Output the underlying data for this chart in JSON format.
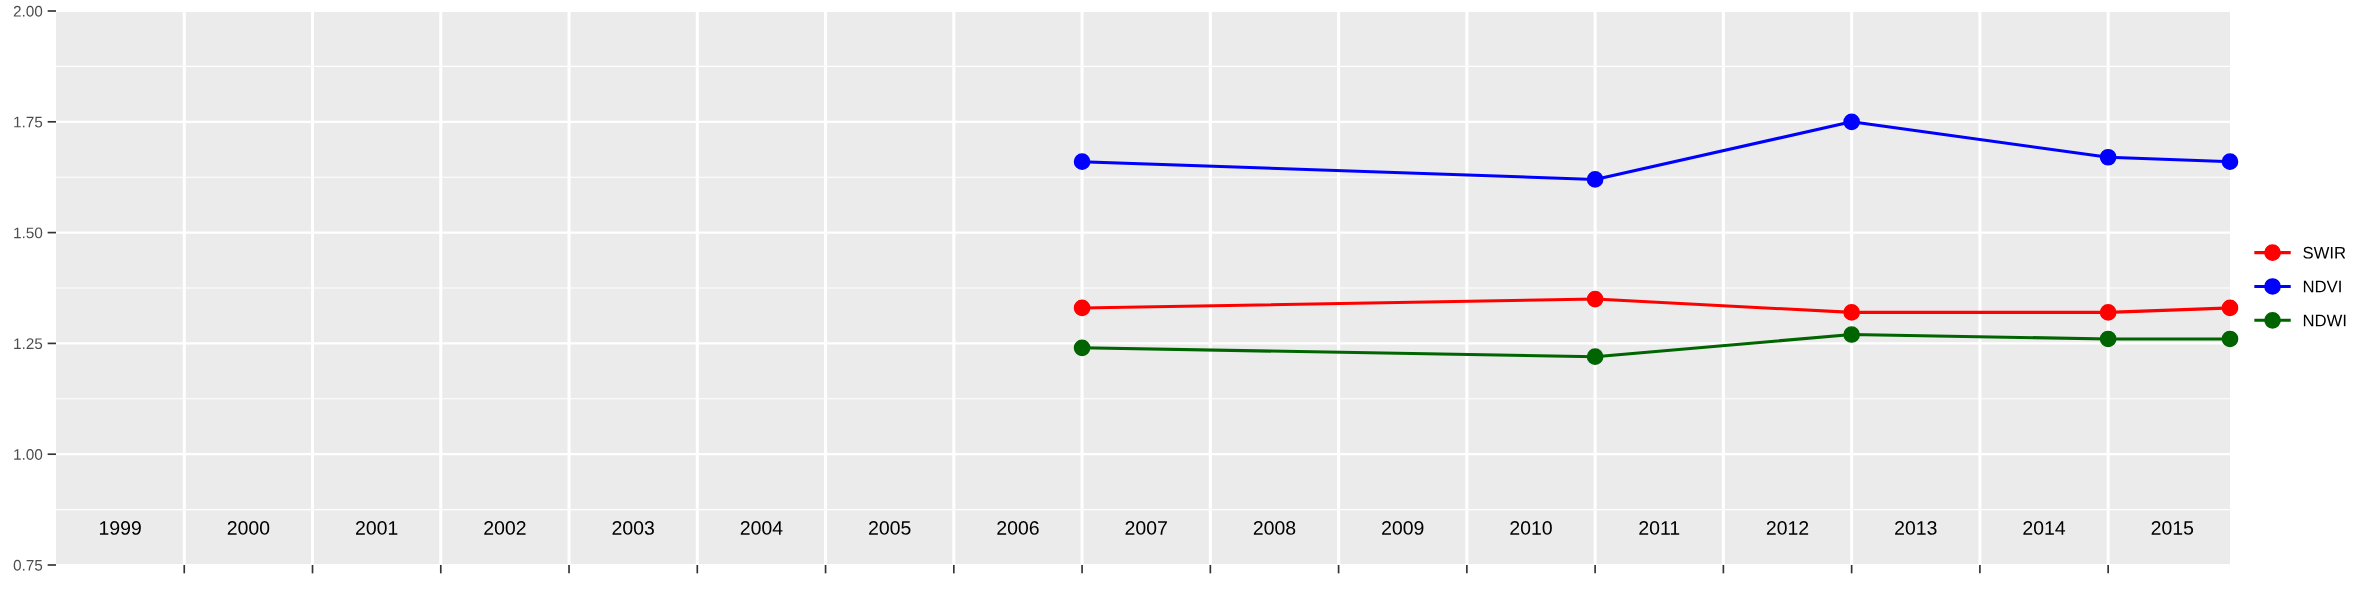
{
  "chart_data": {
    "type": "line",
    "x": [
      2006.5,
      2010.5,
      2012.5,
      2014.5,
      2015.45
    ],
    "series": [
      {
        "name": "SWIR",
        "color": "#ff0000",
        "values": [
          1.33,
          1.35,
          1.32,
          1.32,
          1.33
        ]
      },
      {
        "name": "NDVI",
        "color": "#0000ff",
        "values": [
          1.66,
          1.62,
          1.75,
          1.67,
          1.66
        ]
      },
      {
        "name": "NDWI",
        "color": "#006400",
        "values": [
          1.24,
          1.22,
          1.27,
          1.26,
          1.26
        ]
      }
    ],
    "xlim": [
      1998.5,
      2015.45
    ],
    "xticks": [
      {
        "value": 1999,
        "label": "1999"
      },
      {
        "value": 2000,
        "label": "2000"
      },
      {
        "value": 2001,
        "label": "2001"
      },
      {
        "value": 2002,
        "label": "2002"
      },
      {
        "value": 2003,
        "label": "2003"
      },
      {
        "value": 2004,
        "label": "2004"
      },
      {
        "value": 2005,
        "label": "2005"
      },
      {
        "value": 2006,
        "label": "2006"
      },
      {
        "value": 2007,
        "label": "2007"
      },
      {
        "value": 2008,
        "label": "2008"
      },
      {
        "value": 2009,
        "label": "2009"
      },
      {
        "value": 2010,
        "label": "2010"
      },
      {
        "value": 2011,
        "label": "2011"
      },
      {
        "value": 2012,
        "label": "2012"
      },
      {
        "value": 2013,
        "label": "2013"
      },
      {
        "value": 2014,
        "label": "2014"
      },
      {
        "value": 2015,
        "label": "2015"
      },
      {
        "value": 1999.5,
        "label": null
      },
      {
        "value": 2000.5,
        "label": null
      },
      {
        "value": 2001.5,
        "label": null
      },
      {
        "value": 2002.5,
        "label": null
      },
      {
        "value": 2003.5,
        "label": null
      },
      {
        "value": 2004.5,
        "label": null
      },
      {
        "value": 2005.5,
        "label": null
      },
      {
        "value": 2006.5,
        "label": null
      },
      {
        "value": 2007.5,
        "label": null
      },
      {
        "value": 2008.5,
        "label": null
      },
      {
        "value": 2009.5,
        "label": null
      },
      {
        "value": 2010.5,
        "label": null
      },
      {
        "value": 2011.5,
        "label": null
      },
      {
        "value": 2012.5,
        "label": null
      },
      {
        "value": 2013.5,
        "label": null
      },
      {
        "value": 2014.5,
        "label": null
      }
    ],
    "ylim": [
      0.75,
      2.0
    ],
    "yticks": [
      0.75,
      {
        "value": 1.0,
        "label": "1.00"
      },
      1.25,
      {
        "value": 1.5,
        "label": "1.50"
      },
      1.75,
      {
        "value": 2.0,
        "label": "2.00"
      }
    ],
    "grid": true,
    "legend": "right",
    "marker": "circle",
    "line_style": "solid"
  }
}
